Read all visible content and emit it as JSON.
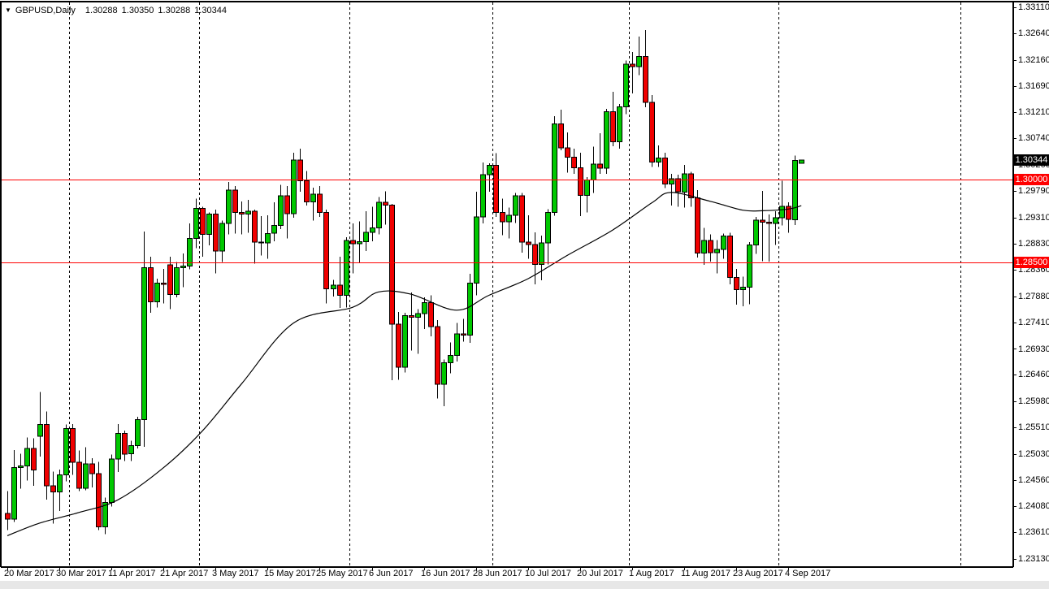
{
  "header": {
    "symbol_label": "GBPUSD,Daily",
    "quote": {
      "open": "1.30288",
      "high": "1.30350",
      "low": "1.30288",
      "close": "1.30344"
    }
  },
  "price_axis": {
    "labels": [
      "1.33110",
      "1.32640",
      "1.32160",
      "1.31690",
      "1.31210",
      "1.30740",
      "1.30260",
      "1.29790",
      "1.29310",
      "1.28830",
      "1.28360",
      "1.27880",
      "1.27410",
      "1.26930",
      "1.26460",
      "1.25980",
      "1.25510",
      "1.25030",
      "1.24560",
      "1.24080",
      "1.23610",
      "1.23130"
    ]
  },
  "date_axis": {
    "ticks": [
      {
        "idx": 0,
        "label": "20 Mar 2017"
      },
      {
        "idx": 8,
        "label": "30 Mar 2017"
      },
      {
        "idx": 16,
        "label": "11 Apr 2017"
      },
      {
        "idx": 24,
        "label": "21 Apr 2017"
      },
      {
        "idx": 32,
        "label": "3 May 2017"
      },
      {
        "idx": 40,
        "label": "15 May 2017"
      },
      {
        "idx": 48,
        "label": "25 May 2017"
      },
      {
        "idx": 56,
        "label": "6 Jun 2017"
      },
      {
        "idx": 64,
        "label": "16 Jun 2017"
      },
      {
        "idx": 72,
        "label": "28 Jun 2017"
      },
      {
        "idx": 80,
        "label": "10 Jul 2017"
      },
      {
        "idx": 88,
        "label": "20 Jul 2017"
      },
      {
        "idx": 96,
        "label": "1 Aug 2017"
      },
      {
        "idx": 104,
        "label": "11 Aug 2017"
      },
      {
        "idx": 112,
        "label": "23 Aug 2017"
      },
      {
        "idx": 120,
        "label": "4 Sep 2017"
      }
    ]
  },
  "hlines": [
    {
      "price": 1.3,
      "label": "1.30000",
      "color": "#ff0000"
    },
    {
      "price": 1.285,
      "label": "1.28500",
      "color": "#ff0000"
    }
  ],
  "current_price": {
    "value": 1.30344,
    "label": "1.30344",
    "bg": "#000000",
    "fg": "#ffffff"
  },
  "colors": {
    "bull": "#00c800",
    "bear": "#f00000",
    "outline": "#000000",
    "wick": "#000000",
    "ma": "#000000",
    "separator": "#000000",
    "level_line": "#ff0000",
    "axis_text": "#000000",
    "border": "#000000"
  },
  "chart_data": {
    "type": "candlestick",
    "symbol": "GBPUSD",
    "timeframe": "Daily",
    "title": "GBPUSD,Daily",
    "x_range": {
      "start": "20 Mar 2017",
      "end": "6 Sep 2017",
      "note": "daily bars, weekdays"
    },
    "y_axis": {
      "top": 1.3311,
      "bottom": 1.2313,
      "side": "right",
      "grid": false
    },
    "legend": "none",
    "levels": [
      1.3,
      1.285
    ],
    "last_price": 1.30344,
    "separator_indices": [
      10,
      30,
      53,
      75,
      96,
      119,
      147
    ],
    "candles_format": [
      "open",
      "high",
      "low",
      "close"
    ],
    "candles": [
      [
        1.2395,
        1.2436,
        1.2365,
        1.2385
      ],
      [
        1.2385,
        1.251,
        1.238,
        1.2478
      ],
      [
        1.2478,
        1.2503,
        1.244,
        1.2481
      ],
      [
        1.2481,
        1.2533,
        1.2455,
        1.2513
      ],
      [
        1.2513,
        1.2531,
        1.2445,
        1.2474
      ],
      [
        1.2535,
        1.2615,
        1.2498,
        1.2556
      ],
      [
        1.2556,
        1.258,
        1.242,
        1.2445
      ],
      [
        1.2445,
        1.2471,
        1.2377,
        1.2434
      ],
      [
        1.2434,
        1.2475,
        1.24,
        1.2465
      ],
      [
        1.2465,
        1.2556,
        1.2453,
        1.2549
      ],
      [
        1.2549,
        1.2557,
        1.2465,
        1.2488
      ],
      [
        1.2488,
        1.2509,
        1.2436,
        1.2441
      ],
      [
        1.2441,
        1.2515,
        1.2437,
        1.2485
      ],
      [
        1.2485,
        1.2495,
        1.2442,
        1.2467
      ],
      [
        1.2467,
        1.2489,
        1.2365,
        1.2371
      ],
      [
        1.2371,
        1.2424,
        1.2358,
        1.2415
      ],
      [
        1.2415,
        1.2502,
        1.2408,
        1.2494
      ],
      [
        1.2494,
        1.2557,
        1.247,
        1.254
      ],
      [
        1.254,
        1.2545,
        1.249,
        1.2503
      ],
      [
        1.2503,
        1.2527,
        1.249,
        1.2518
      ],
      [
        1.2518,
        1.257,
        1.2513,
        1.2565
      ],
      [
        1.2565,
        1.2905,
        1.2516,
        1.284
      ],
      [
        1.284,
        1.286,
        1.2758,
        1.2778
      ],
      [
        1.2778,
        1.282,
        1.2768,
        1.2812
      ],
      [
        1.2812,
        1.2838,
        1.2775,
        1.281
      ],
      [
        1.2845,
        1.286,
        1.2765,
        1.2791
      ],
      [
        1.2791,
        1.285,
        1.2786,
        1.284
      ],
      [
        1.284,
        1.2866,
        1.2805,
        1.2843
      ],
      [
        1.2843,
        1.292,
        1.2837,
        1.2893
      ],
      [
        1.2893,
        1.2965,
        1.2875,
        1.2947
      ],
      [
        1.2947,
        1.295,
        1.286,
        1.29
      ],
      [
        1.29,
        1.294,
        1.288,
        1.2937
      ],
      [
        1.2937,
        1.2945,
        1.283,
        1.287
      ],
      [
        1.287,
        1.2925,
        1.285,
        1.292
      ],
      [
        1.292,
        1.2995,
        1.29,
        1.298
      ],
      [
        1.298,
        1.2988,
        1.2902,
        1.294
      ],
      [
        1.294,
        1.296,
        1.29,
        1.2937
      ],
      [
        1.2937,
        1.2963,
        1.2903,
        1.2942
      ],
      [
        1.2942,
        1.2945,
        1.2847,
        1.2886
      ],
      [
        1.2886,
        1.2933,
        1.2862,
        1.2885
      ],
      [
        1.2885,
        1.2935,
        1.2856,
        1.2902
      ],
      [
        1.2902,
        1.2958,
        1.2888,
        1.2916
      ],
      [
        1.2916,
        1.299,
        1.291,
        1.297
      ],
      [
        1.297,
        1.2988,
        1.2893,
        1.2938
      ],
      [
        1.2938,
        1.3048,
        1.293,
        1.3035
      ],
      [
        1.3035,
        1.3055,
        1.2977,
        1.2997
      ],
      [
        1.2997,
        1.3015,
        1.2952,
        1.2959
      ],
      [
        1.2959,
        1.2985,
        1.2925,
        1.2973
      ],
      [
        1.2973,
        1.2988,
        1.2932,
        1.294
      ],
      [
        1.294,
        1.2945,
        1.2775,
        1.2802
      ],
      [
        1.2802,
        1.2818,
        1.2788,
        1.2808
      ],
      [
        1.2808,
        1.286,
        1.2767,
        1.279
      ],
      [
        1.279,
        1.2895,
        1.2768,
        1.2889
      ],
      [
        1.2889,
        1.292,
        1.283,
        1.2883
      ],
      [
        1.2883,
        1.2924,
        1.2848,
        1.2887
      ],
      [
        1.2887,
        1.2942,
        1.287,
        1.2904
      ],
      [
        1.2904,
        1.295,
        1.2888,
        1.2912
      ],
      [
        1.2912,
        1.2968,
        1.29,
        1.2958
      ],
      [
        1.2958,
        1.2978,
        1.2918,
        1.2953
      ],
      [
        1.2953,
        1.2955,
        1.2636,
        1.2738
      ],
      [
        1.2738,
        1.276,
        1.2637,
        1.266
      ],
      [
        1.266,
        1.2758,
        1.265,
        1.2753
      ],
      [
        1.2753,
        1.2795,
        1.269,
        1.275
      ],
      [
        1.275,
        1.2765,
        1.2684,
        1.2757
      ],
      [
        1.2757,
        1.2786,
        1.2729,
        1.2777
      ],
      [
        1.2777,
        1.279,
        1.2716,
        1.2733
      ],
      [
        1.2733,
        1.2745,
        1.2603,
        1.2629
      ],
      [
        1.2629,
        1.2674,
        1.2589,
        1.2668
      ],
      [
        1.2668,
        1.2705,
        1.2649,
        1.2681
      ],
      [
        1.2681,
        1.274,
        1.267,
        1.272
      ],
      [
        1.272,
        1.2747,
        1.2706,
        1.2718
      ],
      [
        1.2718,
        1.2829,
        1.2704,
        1.2812
      ],
      [
        1.2812,
        1.2977,
        1.279,
        1.2932
      ],
      [
        1.2932,
        1.303,
        1.292,
        1.3008
      ],
      [
        1.3008,
        1.3029,
        1.2977,
        1.3025
      ],
      [
        1.3025,
        1.3047,
        1.2932,
        1.294
      ],
      [
        1.294,
        1.2965,
        1.2899,
        1.2923
      ],
      [
        1.2923,
        1.2949,
        1.2893,
        1.2935
      ],
      [
        1.2935,
        1.2975,
        1.2921,
        1.297
      ],
      [
        1.297,
        1.2975,
        1.2867,
        1.2886
      ],
      [
        1.2886,
        1.2935,
        1.2856,
        1.2882
      ],
      [
        1.2882,
        1.2904,
        1.281,
        1.2846
      ],
      [
        1.2846,
        1.2898,
        1.2817,
        1.2885
      ],
      [
        1.2885,
        1.2946,
        1.2846,
        1.294
      ],
      [
        1.294,
        1.3114,
        1.2934,
        1.31
      ],
      [
        1.31,
        1.3126,
        1.3052,
        1.3057
      ],
      [
        1.3057,
        1.3085,
        1.3012,
        1.304
      ],
      [
        1.304,
        1.3055,
        1.301,
        1.3021
      ],
      [
        1.3021,
        1.3048,
        1.2933,
        1.2971
      ],
      [
        1.2971,
        1.3004,
        1.294,
        1.2999
      ],
      [
        1.2999,
        1.3059,
        1.2975,
        1.3027
      ],
      [
        1.3027,
        1.3083,
        1.301,
        1.302
      ],
      [
        1.302,
        1.3127,
        1.301,
        1.3122
      ],
      [
        1.3122,
        1.3158,
        1.306,
        1.3068
      ],
      [
        1.3068,
        1.3136,
        1.3055,
        1.3131
      ],
      [
        1.3131,
        1.3215,
        1.3118,
        1.3208
      ],
      [
        1.3208,
        1.323,
        1.3155,
        1.3204
      ],
      [
        1.3204,
        1.3258,
        1.3188,
        1.3222
      ],
      [
        1.3222,
        1.327,
        1.313,
        1.3139
      ],
      [
        1.3139,
        1.3152,
        1.3022,
        1.3031
      ],
      [
        1.3031,
        1.3061,
        1.3022,
        1.3038
      ],
      [
        1.3038,
        1.3048,
        1.2984,
        1.2991
      ],
      [
        1.2991,
        1.301,
        1.2952,
        1.3001
      ],
      [
        1.3001,
        1.3008,
        1.295,
        1.2977
      ],
      [
        1.2977,
        1.3026,
        1.2949,
        1.301
      ],
      [
        1.301,
        1.3013,
        1.295,
        1.2966
      ],
      [
        1.2966,
        1.298,
        1.2858,
        1.2866
      ],
      [
        1.2866,
        1.2912,
        1.2845,
        1.2889
      ],
      [
        1.2889,
        1.29,
        1.2851,
        1.2867
      ],
      [
        1.2867,
        1.289,
        1.283,
        1.2873
      ],
      [
        1.2873,
        1.2902,
        1.2856,
        1.2897
      ],
      [
        1.2897,
        1.2903,
        1.281,
        1.2822
      ],
      [
        1.2822,
        1.2838,
        1.2773,
        1.28
      ],
      [
        1.28,
        1.2824,
        1.277,
        1.2805
      ],
      [
        1.2805,
        1.2886,
        1.2774,
        1.2881
      ],
      [
        1.2881,
        1.2932,
        1.2865,
        1.2926
      ],
      [
        1.2926,
        1.2979,
        1.2852,
        1.2922
      ],
      [
        1.2922,
        1.2936,
        1.2851,
        1.292
      ],
      [
        1.292,
        1.2942,
        1.2881,
        1.293
      ],
      [
        1.293,
        1.2997,
        1.2916,
        1.2951
      ],
      [
        1.2951,
        1.2958,
        1.2903,
        1.2927
      ],
      [
        1.2927,
        1.3043,
        1.2917,
        1.3034
      ],
      [
        1.30288,
        1.3035,
        1.30288,
        1.30344
      ]
    ],
    "ma_line": {
      "name": "moving-average",
      "points": [
        [
          0,
          1.2355
        ],
        [
          5,
          1.2378
        ],
        [
          11,
          1.2397
        ],
        [
          17,
          1.242
        ],
        [
          24,
          1.2478
        ],
        [
          30,
          1.2545
        ],
        [
          36,
          1.263
        ],
        [
          44,
          1.274
        ],
        [
          53,
          1.2768
        ],
        [
          57,
          1.2796
        ],
        [
          62,
          1.2792
        ],
        [
          69,
          1.2763
        ],
        [
          74,
          1.279
        ],
        [
          80,
          1.282
        ],
        [
          86,
          1.2862
        ],
        [
          93,
          1.2908
        ],
        [
          99,
          1.2957
        ],
        [
          102,
          1.2976
        ],
        [
          108,
          1.296
        ],
        [
          113,
          1.2944
        ],
        [
          116,
          1.2943
        ],
        [
          120,
          1.2946
        ],
        [
          122,
          1.2952
        ]
      ]
    }
  }
}
